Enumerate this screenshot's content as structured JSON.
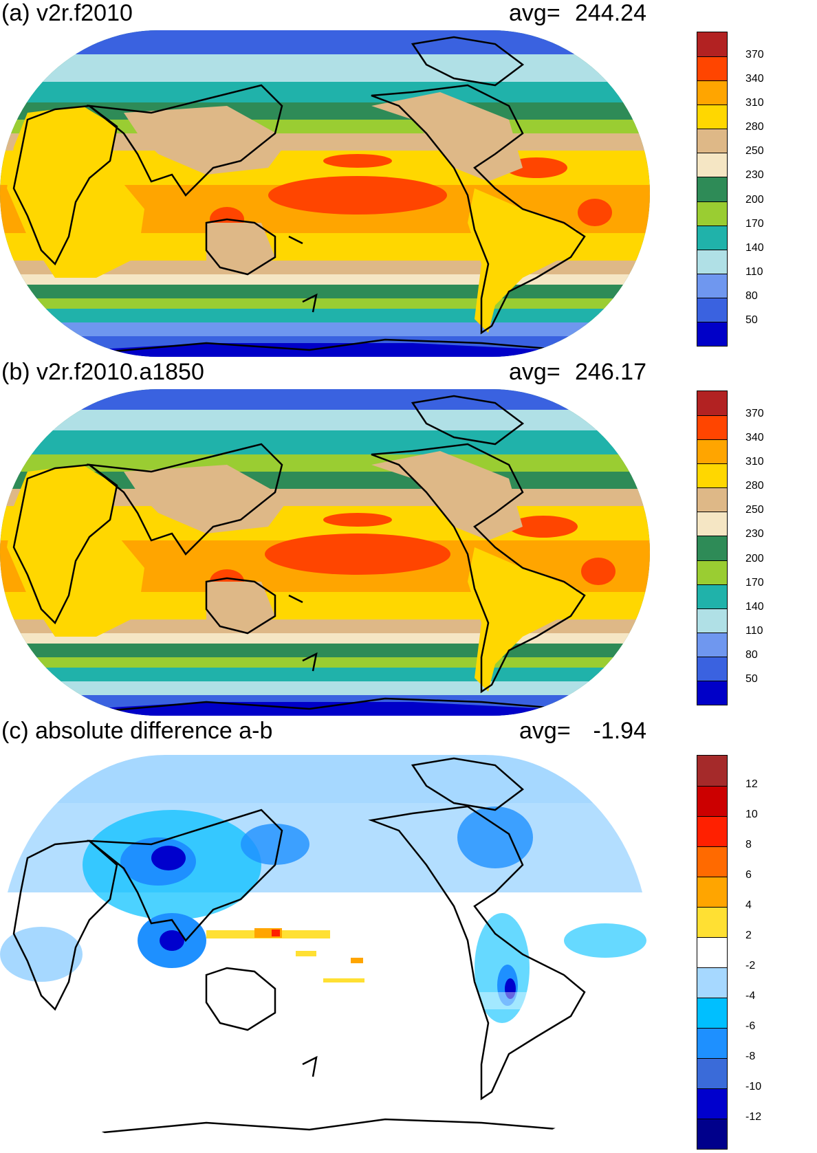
{
  "panels": [
    {
      "title": "(a) v2r.f2010",
      "avg_label": "avg=",
      "avg_value": "244.24",
      "colorbar": {
        "colors": [
          "#0000c8",
          "#3a62e0",
          "#6f97ef",
          "#b0e0e6",
          "#20b2aa",
          "#9acd32",
          "#2e8b57",
          "#f5e6c4",
          "#deb887",
          "#ffd700",
          "#ffa500",
          "#ff4500",
          "#b22222"
        ],
        "labels": [
          "50",
          "80",
          "110",
          "140",
          "170",
          "200",
          "230",
          "250",
          "280",
          "310",
          "340",
          "370"
        ]
      }
    },
    {
      "title": "(b) v2r.f2010.a1850",
      "avg_label": "avg=",
      "avg_value": "246.17",
      "colorbar": {
        "colors": [
          "#0000c8",
          "#3a62e0",
          "#6f97ef",
          "#b0e0e6",
          "#20b2aa",
          "#9acd32",
          "#2e8b57",
          "#f5e6c4",
          "#deb887",
          "#ffd700",
          "#ffa500",
          "#ff4500",
          "#b22222"
        ],
        "labels": [
          "50",
          "80",
          "110",
          "140",
          "170",
          "200",
          "230",
          "250",
          "280",
          "310",
          "340",
          "370"
        ]
      }
    },
    {
      "title": "(c) absolute difference a-b",
      "avg_label": "avg=",
      "avg_value": "-1.94",
      "colorbar": {
        "colors": [
          "#00008b",
          "#0000cd",
          "#3a6bd9",
          "#1e90ff",
          "#00bfff",
          "#a6d8ff",
          "#ffffff",
          "#ffe033",
          "#ffa500",
          "#ff6a00",
          "#ff2000",
          "#cc0000",
          "#a52a2a"
        ],
        "labels": [
          "-12",
          "-10",
          "-8",
          "-6",
          "-4",
          "-2",
          "2",
          "4",
          "6",
          "8",
          "10",
          "12"
        ]
      }
    }
  ]
}
